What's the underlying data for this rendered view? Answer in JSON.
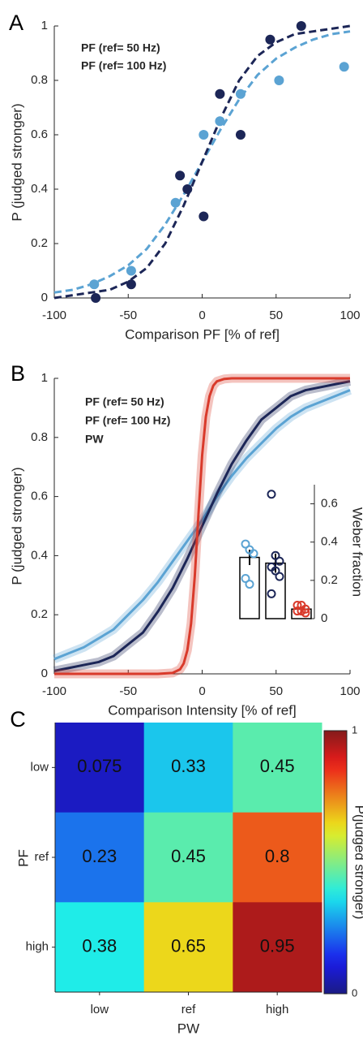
{
  "chart_data": [
    {
      "type": "scatter",
      "panel_label": "A",
      "x_label": "Comparison PF [% of ref]",
      "y_label": "P (judged stronger)",
      "xlim": [
        -100,
        100
      ],
      "ylim": [
        0,
        1
      ],
      "xticks": [
        -100,
        -50,
        0,
        50,
        100
      ],
      "yticks": [
        0,
        0.2,
        0.4,
        0.6,
        0.8,
        1
      ],
      "fit_x": [
        -100,
        -87.5,
        -75,
        -62.5,
        -50,
        -37.5,
        -25,
        -12.5,
        0,
        12.5,
        25,
        37.5,
        50,
        62.5,
        75,
        87.5,
        100
      ],
      "series": [
        {
          "name": "PF (ref= 50 Hz)",
          "color": "#5ba3d3",
          "x": [
            -73,
            -48,
            -18,
            1,
            12,
            26,
            52,
            96
          ],
          "values": [
            0.05,
            0.1,
            0.35,
            0.6,
            0.65,
            0.75,
            0.8,
            0.85
          ],
          "fit_values": [
            0.02,
            0.03,
            0.05,
            0.08,
            0.12,
            0.18,
            0.27,
            0.38,
            0.5,
            0.62,
            0.73,
            0.82,
            0.88,
            0.92,
            0.95,
            0.97,
            0.98
          ]
        },
        {
          "name": "PF (ref= 100 Hz)",
          "color": "#1c2657",
          "x": [
            -72,
            -48,
            -15,
            -10,
            1,
            12,
            26,
            46,
            67
          ],
          "values": [
            0,
            0.05,
            0.45,
            0.4,
            0.3,
            0.75,
            0.6,
            0.95,
            1
          ],
          "fit_values": [
            0,
            0.01,
            0.02,
            0.03,
            0.06,
            0.11,
            0.2,
            0.34,
            0.5,
            0.66,
            0.8,
            0.89,
            0.94,
            0.97,
            0.98,
            0.99,
            1
          ]
        }
      ]
    },
    {
      "type": "line",
      "panel_label": "B",
      "x_label": "Comparison Intensity [% of ref]",
      "y_label": "P (judged stronger)",
      "xlim": [
        -100,
        100
      ],
      "ylim": [
        0,
        1
      ],
      "xticks": [
        -100,
        -50,
        0,
        50,
        100
      ],
      "yticks": [
        0,
        0.2,
        0.4,
        0.6,
        0.8,
        1
      ],
      "series": [
        {
          "name": "PF (ref= 50 Hz)",
          "color": "#5ba3d3",
          "x": [
            -100,
            -90,
            -80,
            -70,
            -60,
            -50,
            -40,
            -30,
            -20,
            -10,
            0,
            10,
            20,
            30,
            40,
            50,
            60,
            70,
            80,
            90,
            100
          ],
          "values": [
            0.05,
            0.07,
            0.09,
            0.12,
            0.15,
            0.2,
            0.25,
            0.31,
            0.38,
            0.45,
            0.52,
            0.6,
            0.67,
            0.73,
            0.78,
            0.83,
            0.87,
            0.9,
            0.92,
            0.94,
            0.96
          ]
        },
        {
          "name": "PF (ref= 100 Hz)",
          "color": "#1c2657",
          "x": [
            -100,
            -90,
            -80,
            -70,
            -60,
            -50,
            -40,
            -30,
            -20,
            -10,
            0,
            10,
            20,
            30,
            40,
            50,
            60,
            70,
            80,
            90,
            100
          ],
          "values": [
            0.01,
            0.02,
            0.03,
            0.04,
            0.06,
            0.1,
            0.14,
            0.21,
            0.29,
            0.39,
            0.5,
            0.61,
            0.71,
            0.79,
            0.86,
            0.9,
            0.94,
            0.96,
            0.97,
            0.98,
            0.99
          ]
        },
        {
          "name": "PW",
          "color": "#d93a2b",
          "x": [
            -100,
            -50,
            -30,
            -20,
            -15,
            -12.5,
            -10,
            -7.5,
            -5,
            -2.5,
            0,
            2.5,
            5,
            7.5,
            10,
            15,
            20,
            30,
            50,
            100
          ],
          "values": [
            0,
            0,
            0,
            0.003,
            0.015,
            0.035,
            0.08,
            0.17,
            0.33,
            0.54,
            0.74,
            0.87,
            0.94,
            0.975,
            0.99,
            0.998,
            1,
            1,
            1,
            1
          ]
        }
      ]
    },
    {
      "type": "bar",
      "y_label": "Weber fraction",
      "ylim": [
        0,
        0.7
      ],
      "yticks": [
        0,
        0.2,
        0.4,
        0.6
      ],
      "values": [
        0.32,
        0.29,
        0.05
      ],
      "errors": [
        0.04,
        0.05,
        0.01
      ],
      "colors": [
        "#5ba3d3",
        "#1c2657",
        "#d93a2b"
      ],
      "points": [
        [
          0.39,
          0.36,
          0.34,
          0.21,
          0.18
        ],
        [
          0.65,
          0.33,
          0.3,
          0.27,
          0.25,
          0.22,
          0.13
        ],
        [
          0.07,
          0.07,
          0.05,
          0.04,
          0.04,
          0.03
        ]
      ]
    },
    {
      "type": "heatmap",
      "panel_label": "C",
      "x_label": "PW",
      "y_label": "PF",
      "x_categories": [
        "low",
        "ref",
        "high"
      ],
      "y_categories": [
        "low",
        "ref",
        "high"
      ],
      "values": [
        [
          0.075,
          0.33,
          0.45
        ],
        [
          0.23,
          0.45,
          0.8
        ],
        [
          0.38,
          0.65,
          0.95
        ]
      ],
      "clim": [
        0,
        1
      ],
      "cticks": [
        0,
        1
      ],
      "colorbar_label": "P(judged stronger)"
    }
  ]
}
